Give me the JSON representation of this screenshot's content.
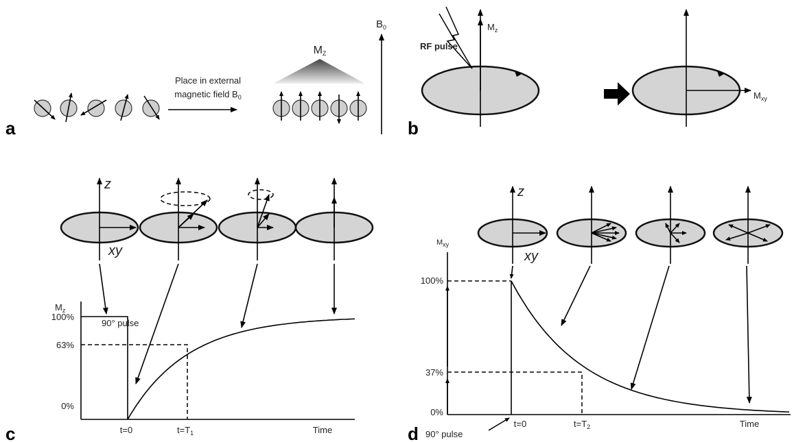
{
  "panel_a": {
    "label": "a",
    "caption_line1": "Place in external",
    "caption_line2": {
      "text": "magnetic field B",
      "sub": "0"
    },
    "magnetization": {
      "text": "M",
      "sub": "Z"
    },
    "field": {
      "text": "B",
      "sub": "0"
    }
  },
  "panel_b": {
    "label": "b",
    "rf_pulse": "RF pulse",
    "mz": {
      "text": "M",
      "sub": "z"
    },
    "mxy": {
      "text": "M",
      "sub": "xy"
    }
  },
  "panel_c": {
    "label": "c",
    "z_axis": "z",
    "xy_plane": "xy",
    "y_axis": {
      "text": "M",
      "sub": "z"
    },
    "pulse": "90° pulse",
    "tick_100": "100%",
    "tick_63": "63%",
    "tick_0": "0%",
    "t0": "t=0",
    "t1": {
      "text": "t=T",
      "sub": "1"
    },
    "time": "Time"
  },
  "panel_d": {
    "label": "d",
    "z_axis": "z",
    "xy_plane": "xy",
    "y_axis": {
      "text": "M",
      "sub": "xy"
    },
    "pulse": "90° pulse",
    "tick_100": "100%",
    "tick_37": "37%",
    "tick_0": "0%",
    "t0": "t=0",
    "t2": {
      "text": "t=T",
      "sub": "2"
    },
    "time": "Time"
  }
}
